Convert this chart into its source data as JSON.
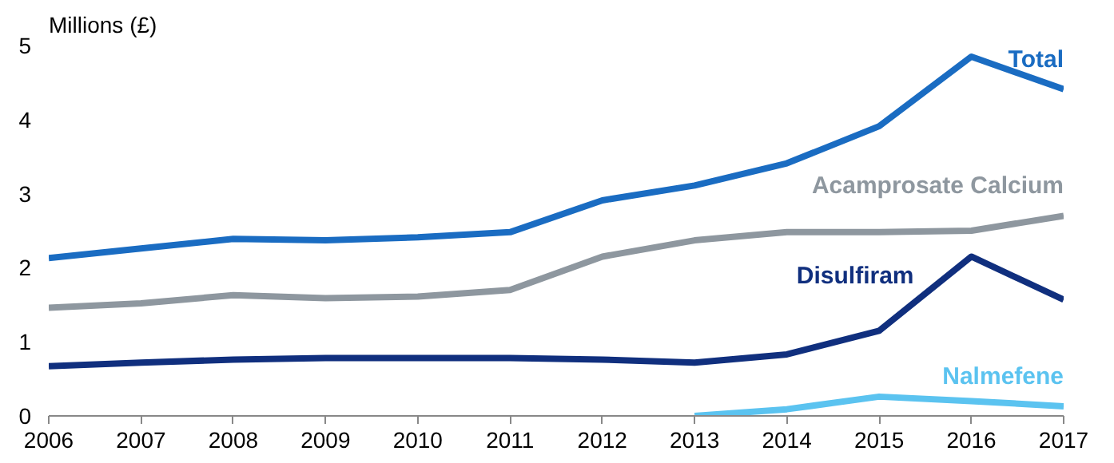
{
  "chart_data": {
    "type": "line",
    "ylabel": "Millions (£)",
    "x": [
      2006,
      2007,
      2008,
      2009,
      2010,
      2011,
      2012,
      2013,
      2014,
      2015,
      2016,
      2017
    ],
    "xlim": [
      2006,
      2017
    ],
    "xticks": [
      2006,
      2007,
      2008,
      2009,
      2010,
      2011,
      2012,
      2013,
      2014,
      2015,
      2016,
      2017
    ],
    "ylim": [
      0,
      5
    ],
    "yticks": [
      0,
      1,
      2,
      3,
      4,
      5
    ],
    "grid": false,
    "marker": "none",
    "line_style": "solid",
    "series": [
      {
        "name": "Total",
        "color": "#1a6cc2",
        "values": [
          2.13,
          2.26,
          2.39,
          2.37,
          2.41,
          2.48,
          2.91,
          3.11,
          3.41,
          3.91,
          4.85,
          4.41
        ]
      },
      {
        "name": "Acamprosate Calcium",
        "color": "#8e979f",
        "values": [
          1.46,
          1.52,
          1.63,
          1.59,
          1.61,
          1.7,
          2.15,
          2.37,
          2.48,
          2.48,
          2.5,
          2.7
        ]
      },
      {
        "name": "Disulfiram",
        "color": "#102f7e",
        "values": [
          0.67,
          0.72,
          0.76,
          0.78,
          0.78,
          0.78,
          0.76,
          0.72,
          0.83,
          1.15,
          2.15,
          1.57
        ]
      },
      {
        "name": "Nalmefene",
        "color": "#5bc3f0",
        "values": [
          null,
          null,
          null,
          null,
          null,
          null,
          null,
          0.0,
          0.09,
          0.26,
          0.2,
          0.13
        ]
      }
    ]
  }
}
